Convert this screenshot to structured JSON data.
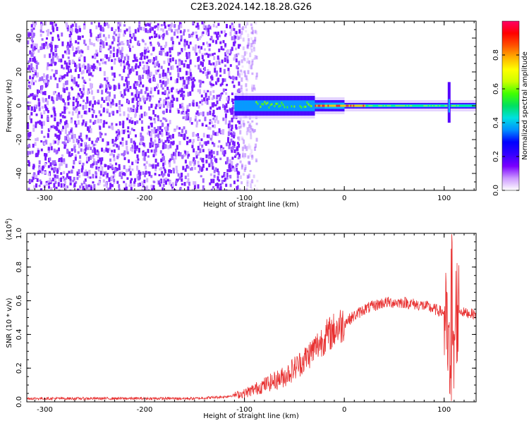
{
  "title": "C2E3.2024.142.18.28.G26",
  "chart_data": [
    {
      "type": "heatmap",
      "xlabel": "Height of straight line (km)",
      "ylabel": "Frequency (Hz)",
      "xlim": [
        -318,
        132
      ],
      "ylim": [
        -50,
        50
      ],
      "x_ticks": [
        -300,
        -200,
        -100,
        0,
        100
      ],
      "y_ticks": [
        -40,
        -20,
        0,
        20,
        40
      ],
      "colorbar": {
        "label": "Normalized spectral amplitude",
        "range": [
          0,
          1
        ],
        "ticks": [
          "0.0",
          "0.2",
          "0.4",
          "0.6",
          "0.8"
        ],
        "colors": [
          "#ffffff",
          "#cc99ff",
          "#7a00ff",
          "#3300ff",
          "#0000ff",
          "#0090ff",
          "#00e0e0",
          "#00e060",
          "#40ff00",
          "#ccff00",
          "#ffff00",
          "#ffb000",
          "#ff5000",
          "#ff0000",
          "#ff0066"
        ]
      },
      "features": {
        "noise_region_x": [
          -318,
          -95
        ],
        "signal_line_freq_hz": 0,
        "signal_start_x": -110,
        "strong_signal_x": [
          -20,
          10
        ],
        "transient_x": 105
      }
    },
    {
      "type": "line",
      "xlabel": "Height of straight line (km)",
      "ylabel": "SNR (10 * v/v)",
      "y_multiplier": "(x10",
      "y_multiplier_exp": "4",
      "y_multiplier_close": ")",
      "xlim": [
        -318,
        132
      ],
      "ylim": [
        0,
        1.0
      ],
      "x_ticks": [
        -300,
        -200,
        -100,
        0,
        100
      ],
      "y_ticks": [
        "0.0",
        "0.2",
        "0.4",
        "0.6",
        "0.8",
        "1.0"
      ],
      "color": "#e83030",
      "x": [
        -318,
        -150,
        -120,
        -100,
        -80,
        -60,
        -40,
        -20,
        0,
        20,
        40,
        60,
        80,
        100,
        104,
        108,
        112,
        120,
        132
      ],
      "y": [
        0.02,
        0.02,
        0.03,
        0.05,
        0.1,
        0.15,
        0.25,
        0.38,
        0.47,
        0.55,
        0.59,
        0.59,
        0.57,
        0.53,
        0.3,
        0.05,
        0.55,
        0.53,
        0.52
      ]
    }
  ]
}
